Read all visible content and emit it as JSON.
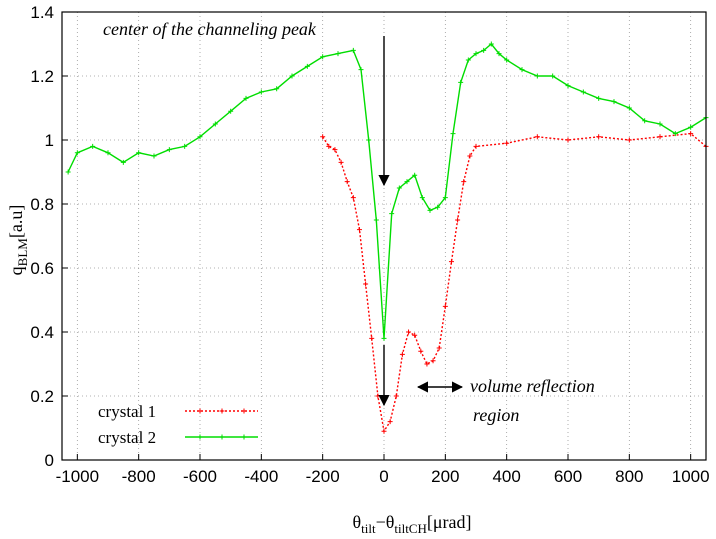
{
  "chart_data": {
    "type": "line",
    "xlabel": {
      "main": "θ",
      "sub1": "tilt",
      "mid": "−θ",
      "sub2": "tiltCH",
      "unit": "[μrad]"
    },
    "ylabel": {
      "main": "q",
      "sub": "BLM",
      "unit": "[a.u]"
    },
    "xlim": [
      -1050,
      1050
    ],
    "ylim": [
      0,
      1.4
    ],
    "xticks": [
      -1000,
      -800,
      -600,
      -400,
      -200,
      0,
      200,
      400,
      600,
      800,
      1000
    ],
    "yticks": [
      0,
      0.2,
      0.4,
      0.6,
      0.8,
      1,
      1.2,
      1.4
    ],
    "grid": true,
    "legend_position": "bottom-left",
    "series": [
      {
        "name": "crystal 1",
        "color": "#ff0000",
        "style": "dotted-plus",
        "x": [
          -200,
          -180,
          -160,
          -140,
          -120,
          -100,
          -80,
          -60,
          -40,
          -20,
          0,
          20,
          40,
          60,
          80,
          100,
          120,
          140,
          160,
          180,
          200,
          220,
          240,
          260,
          280,
          300,
          400,
          500,
          600,
          700,
          800,
          900,
          1000,
          1050
        ],
        "y": [
          1.01,
          0.98,
          0.97,
          0.93,
          0.87,
          0.82,
          0.72,
          0.55,
          0.38,
          0.2,
          0.09,
          0.12,
          0.2,
          0.33,
          0.4,
          0.39,
          0.34,
          0.3,
          0.31,
          0.35,
          0.48,
          0.62,
          0.75,
          0.87,
          0.95,
          0.98,
          0.99,
          1.01,
          1.0,
          1.01,
          1.0,
          1.01,
          1.02,
          0.98
        ]
      },
      {
        "name": "crystal 2",
        "color": "#00dd00",
        "style": "solid-plus",
        "x": [
          -1030,
          -1000,
          -950,
          -900,
          -850,
          -800,
          -750,
          -700,
          -650,
          -600,
          -550,
          -500,
          -450,
          -400,
          -350,
          -300,
          -250,
          -200,
          -150,
          -100,
          -75,
          -50,
          -25,
          0,
          25,
          50,
          75,
          100,
          125,
          150,
          175,
          200,
          225,
          250,
          275,
          300,
          325,
          350,
          375,
          400,
          450,
          500,
          550,
          600,
          650,
          700,
          750,
          800,
          850,
          900,
          950,
          1000,
          1050
        ],
        "y": [
          0.9,
          0.96,
          0.98,
          0.96,
          0.93,
          0.96,
          0.95,
          0.97,
          0.98,
          1.01,
          1.05,
          1.09,
          1.13,
          1.15,
          1.16,
          1.2,
          1.23,
          1.26,
          1.27,
          1.28,
          1.22,
          1.0,
          0.75,
          0.38,
          0.77,
          0.85,
          0.87,
          0.89,
          0.82,
          0.78,
          0.79,
          0.82,
          1.02,
          1.18,
          1.25,
          1.27,
          1.28,
          1.3,
          1.27,
          1.25,
          1.22,
          1.2,
          1.2,
          1.17,
          1.15,
          1.13,
          1.12,
          1.1,
          1.06,
          1.05,
          1.02,
          1.04,
          1.07
        ]
      }
    ],
    "annotations": [
      {
        "id": "channeling",
        "text": "center of the channeling peak"
      },
      {
        "id": "vr1",
        "text": "volume reflection"
      },
      {
        "id": "vr2",
        "text": "region"
      }
    ]
  }
}
